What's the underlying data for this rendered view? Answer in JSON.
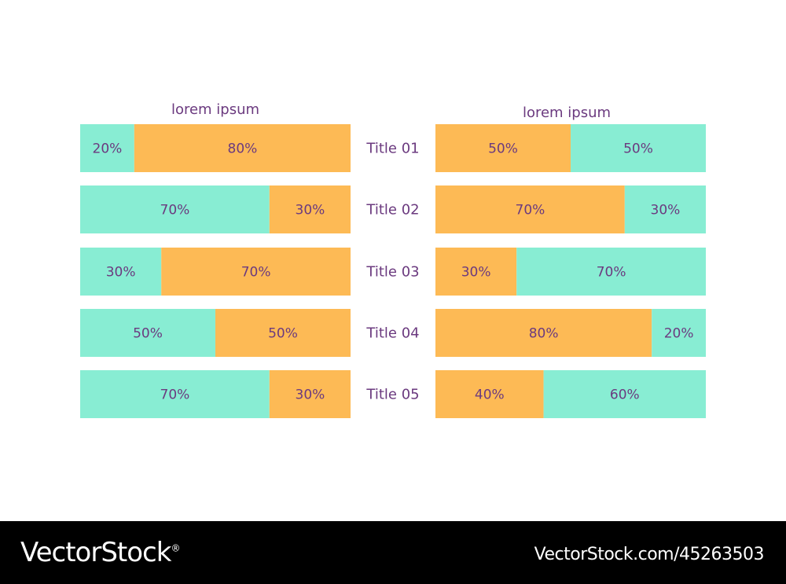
{
  "chart_data": [
    {
      "type": "bar",
      "orientation": "horizontal",
      "stacked": true,
      "normalized_to": 100,
      "title": "lorem ipsum",
      "categories": [
        "Title 01",
        "Title 02",
        "Title 03",
        "Title 04",
        "Title 05"
      ],
      "segment_order": [
        "teal",
        "orange"
      ],
      "series": [
        {
          "name": "teal",
          "color": "#88EDD3",
          "values": [
            20,
            70,
            30,
            50,
            70
          ],
          "labels": [
            "20%",
            "70%",
            "30%",
            "50%",
            "70%"
          ]
        },
        {
          "name": "orange",
          "color": "#FDBA55",
          "values": [
            80,
            30,
            70,
            50,
            30
          ],
          "labels": [
            "80%",
            "30%",
            "70%",
            "50%",
            "30%"
          ]
        }
      ],
      "xlim": [
        0,
        100
      ]
    },
    {
      "type": "bar",
      "orientation": "horizontal",
      "stacked": true,
      "normalized_to": 100,
      "title": "lorem ipsum",
      "categories": [
        "Title 01",
        "Title 02",
        "Title 03",
        "Title 04",
        "Title 05"
      ],
      "segment_order": [
        "orange",
        "teal"
      ],
      "series": [
        {
          "name": "orange",
          "color": "#FDBA55",
          "values": [
            50,
            70,
            30,
            80,
            40
          ],
          "labels": [
            "50%",
            "70%",
            "30%",
            "80%",
            "40%"
          ]
        },
        {
          "name": "teal",
          "color": "#88EDD3",
          "values": [
            50,
            30,
            70,
            20,
            60
          ],
          "labels": [
            "50%",
            "30%",
            "70%",
            "20%",
            "60%"
          ]
        }
      ],
      "xlim": [
        0,
        100
      ]
    }
  ],
  "row_titles": [
    "Title 01",
    "Title 02",
    "Title 03",
    "Title 04",
    "Title 05"
  ],
  "colors": {
    "text": "#6B3A7F",
    "teal": "#88EDD3",
    "orange": "#FDBA55",
    "footer_bg": "#000000",
    "footer_text": "#FFFFFF"
  },
  "footer": {
    "brand": "VectorStock",
    "brand_mark": "®",
    "url": "VectorStock.com/45263503"
  }
}
